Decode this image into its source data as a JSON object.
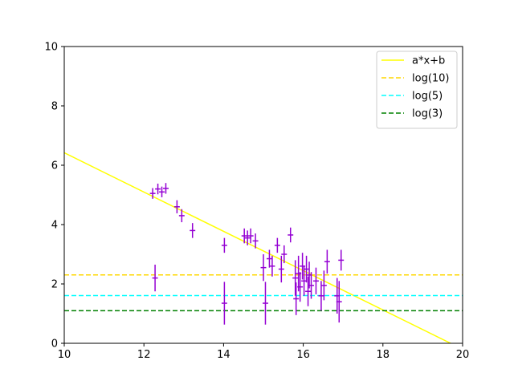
{
  "chart_data": {
    "type": "scatter",
    "title": "",
    "xlabel": "",
    "ylabel": "",
    "xlim": [
      10,
      20
    ],
    "ylim": [
      0,
      10
    ],
    "x_ticks": [
      "10",
      "12",
      "14",
      "16",
      "18",
      "20"
    ],
    "y_ticks": [
      "0",
      "2",
      "4",
      "6",
      "8",
      "10"
    ],
    "grid": false,
    "legend_position": "top-right",
    "lines": [
      {
        "name": "a*x+b",
        "kind": "linear",
        "x0": 10,
        "y0": 6.42,
        "x1": 20,
        "y1": -0.2,
        "color": "#ffff00",
        "dash": false
      },
      {
        "name": "log(10)",
        "kind": "horizontal",
        "y": 2.3026,
        "color": "#ffd700",
        "dash": true
      },
      {
        "name": "log(5)",
        "kind": "horizontal",
        "y": 1.6094,
        "color": "#00ffff",
        "dash": true
      },
      {
        "name": "log(3)",
        "kind": "horizontal",
        "y": 1.0986,
        "color": "#008000",
        "dash": true
      }
    ],
    "points_color": "#9400d3",
    "points": [
      {
        "x": 12.22,
        "y": 5.05,
        "xerr": 0.07,
        "yerr": 0.18
      },
      {
        "x": 12.35,
        "y": 5.2,
        "xerr": 0.07,
        "yerr": 0.18
      },
      {
        "x": 12.45,
        "y": 5.1,
        "xerr": 0.07,
        "yerr": 0.18
      },
      {
        "x": 12.55,
        "y": 5.22,
        "xerr": 0.07,
        "yerr": 0.18
      },
      {
        "x": 12.28,
        "y": 2.2,
        "xerr": 0.07,
        "yerr": 0.45
      },
      {
        "x": 12.83,
        "y": 4.6,
        "xerr": 0.07,
        "yerr": 0.22
      },
      {
        "x": 12.95,
        "y": 4.3,
        "xerr": 0.07,
        "yerr": 0.22
      },
      {
        "x": 13.22,
        "y": 3.8,
        "xerr": 0.07,
        "yerr": 0.25
      },
      {
        "x": 14.02,
        "y": 3.3,
        "xerr": 0.07,
        "yerr": 0.25
      },
      {
        "x": 14.02,
        "y": 1.35,
        "xerr": 0.07,
        "yerr": 0.72
      },
      {
        "x": 14.52,
        "y": 3.62,
        "xerr": 0.07,
        "yerr": 0.25
      },
      {
        "x": 14.6,
        "y": 3.55,
        "xerr": 0.07,
        "yerr": 0.25
      },
      {
        "x": 14.68,
        "y": 3.62,
        "xerr": 0.07,
        "yerr": 0.25
      },
      {
        "x": 14.8,
        "y": 3.45,
        "xerr": 0.07,
        "yerr": 0.25
      },
      {
        "x": 15.0,
        "y": 2.55,
        "xerr": 0.07,
        "yerr": 0.45
      },
      {
        "x": 15.05,
        "y": 1.35,
        "xerr": 0.07,
        "yerr": 0.72
      },
      {
        "x": 15.15,
        "y": 2.85,
        "xerr": 0.07,
        "yerr": 0.3
      },
      {
        "x": 15.22,
        "y": 2.6,
        "xerr": 0.07,
        "yerr": 0.35
      },
      {
        "x": 15.35,
        "y": 3.3,
        "xerr": 0.07,
        "yerr": 0.25
      },
      {
        "x": 15.45,
        "y": 2.5,
        "xerr": 0.07,
        "yerr": 0.45
      },
      {
        "x": 15.52,
        "y": 3.0,
        "xerr": 0.07,
        "yerr": 0.3
      },
      {
        "x": 15.68,
        "y": 3.65,
        "xerr": 0.07,
        "yerr": 0.25
      },
      {
        "x": 15.8,
        "y": 2.2,
        "xerr": 0.07,
        "yerr": 0.6
      },
      {
        "x": 15.82,
        "y": 1.5,
        "xerr": 0.07,
        "yerr": 0.55
      },
      {
        "x": 15.88,
        "y": 2.35,
        "xerr": 0.07,
        "yerr": 0.6
      },
      {
        "x": 15.92,
        "y": 1.9,
        "xerr": 0.07,
        "yerr": 0.5
      },
      {
        "x": 15.98,
        "y": 2.6,
        "xerr": 0.07,
        "yerr": 0.45
      },
      {
        "x": 16.02,
        "y": 2.1,
        "xerr": 0.07,
        "yerr": 0.5
      },
      {
        "x": 16.08,
        "y": 2.5,
        "xerr": 0.07,
        "yerr": 0.45
      },
      {
        "x": 16.12,
        "y": 1.75,
        "xerr": 0.07,
        "yerr": 0.5
      },
      {
        "x": 16.15,
        "y": 2.3,
        "xerr": 0.07,
        "yerr": 0.45
      },
      {
        "x": 16.2,
        "y": 1.95,
        "xerr": 0.07,
        "yerr": 0.45
      },
      {
        "x": 16.32,
        "y": 2.1,
        "xerr": 0.07,
        "yerr": 0.45
      },
      {
        "x": 16.45,
        "y": 1.6,
        "xerr": 0.07,
        "yerr": 0.5
      },
      {
        "x": 16.52,
        "y": 1.95,
        "xerr": 0.07,
        "yerr": 0.5
      },
      {
        "x": 16.6,
        "y": 2.75,
        "xerr": 0.07,
        "yerr": 0.4
      },
      {
        "x": 16.85,
        "y": 1.6,
        "xerr": 0.07,
        "yerr": 0.6
      },
      {
        "x": 16.9,
        "y": 1.4,
        "xerr": 0.07,
        "yerr": 0.7
      },
      {
        "x": 16.95,
        "y": 2.8,
        "xerr": 0.07,
        "yerr": 0.35
      }
    ]
  }
}
